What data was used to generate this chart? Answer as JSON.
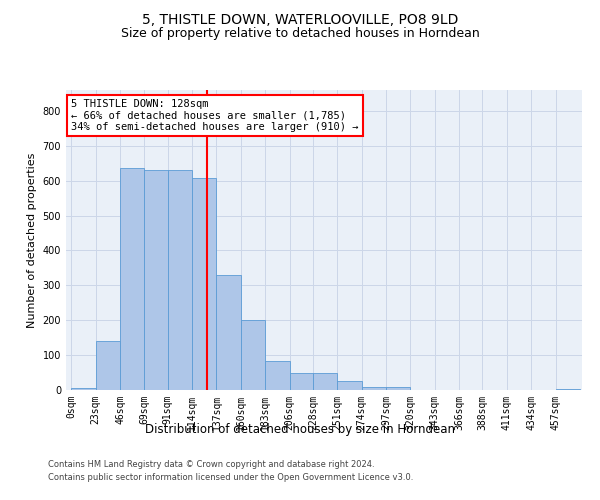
{
  "title_line1": "5, THISTLE DOWN, WATERLOOVILLE, PO8 9LD",
  "title_line2": "Size of property relative to detached houses in Horndean",
  "xlabel": "Distribution of detached houses by size in Horndean",
  "ylabel": "Number of detached properties",
  "footer_line1": "Contains HM Land Registry data © Crown copyright and database right 2024.",
  "footer_line2": "Contains public sector information licensed under the Open Government Licence v3.0.",
  "bin_labels": [
    "0sqm",
    "23sqm",
    "46sqm",
    "69sqm",
    "91sqm",
    "114sqm",
    "137sqm",
    "160sqm",
    "183sqm",
    "206sqm",
    "228sqm",
    "251sqm",
    "274sqm",
    "297sqm",
    "320sqm",
    "343sqm",
    "366sqm",
    "388sqm",
    "411sqm",
    "434sqm",
    "457sqm"
  ],
  "bar_values": [
    5,
    140,
    635,
    630,
    630,
    608,
    330,
    200,
    83,
    48,
    48,
    27,
    10,
    10,
    0,
    0,
    0,
    0,
    0,
    0,
    3
  ],
  "bar_color": "#aec6e8",
  "bar_edge_color": "#5b9bd5",
  "vline_x": 128,
  "vline_color": "red",
  "annotation_line1": "5 THISTLE DOWN: 128sqm",
  "annotation_line2": "← 66% of detached houses are smaller (1,785)",
  "annotation_line3": "34% of semi-detached houses are larger (910) →",
  "annotation_box_color": "white",
  "annotation_box_edge": "red",
  "ylim": [
    0,
    860
  ],
  "yticks": [
    0,
    100,
    200,
    300,
    400,
    500,
    600,
    700,
    800
  ],
  "grid_color": "#ccd6e8",
  "bg_color": "#eaf0f8",
  "title1_fontsize": 10,
  "title2_fontsize": 9,
  "xlabel_fontsize": 8.5,
  "ylabel_fontsize": 8,
  "tick_fontsize": 7,
  "annotation_fontsize": 7.5,
  "footer_fontsize": 6
}
